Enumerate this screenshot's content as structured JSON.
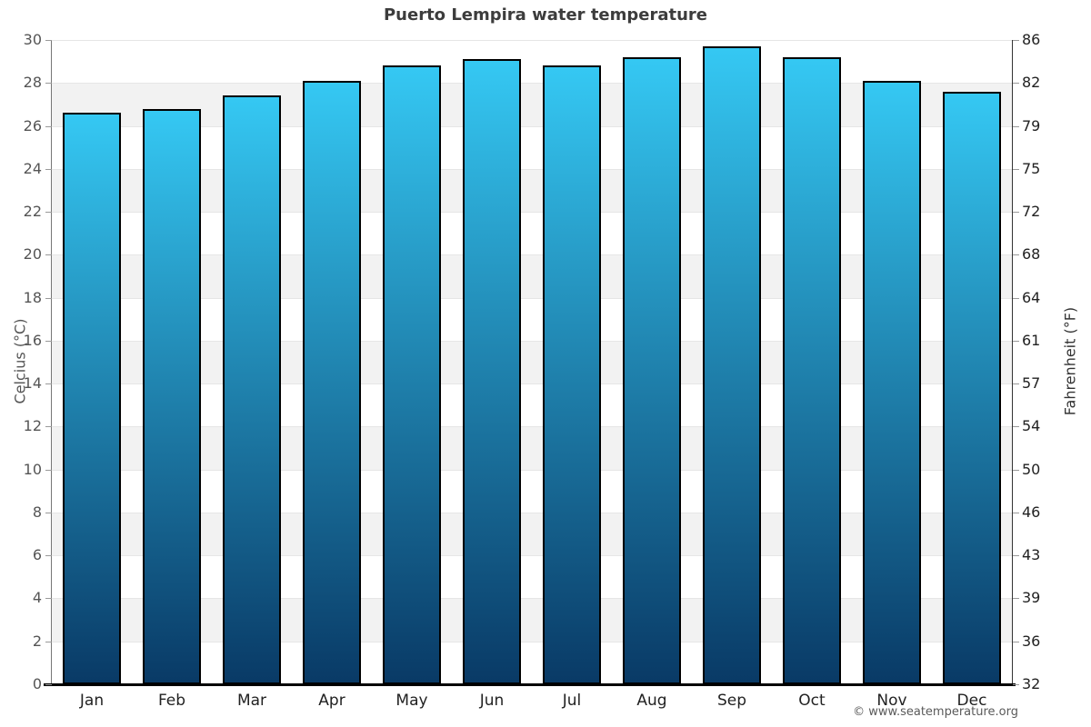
{
  "title": "Puerto Lempira water temperature",
  "copyright": "© www.seatemperature.org",
  "chart_data": {
    "type": "bar",
    "title": "Puerto Lempira water temperature",
    "categories": [
      "Jan",
      "Feb",
      "Mar",
      "Apr",
      "May",
      "Jun",
      "Jul",
      "Aug",
      "Sep",
      "Oct",
      "Nov",
      "Dec"
    ],
    "values": [
      26.6,
      26.8,
      27.4,
      28.1,
      28.8,
      29.1,
      28.8,
      29.2,
      29.7,
      29.2,
      28.1,
      27.6
    ],
    "units": "°C",
    "ylabel_left": "Celcius (°C)",
    "ylabel_right": "Fahrenheit (°F)",
    "xlabel": "",
    "ylim": [
      0,
      30
    ],
    "ytick_step": 2,
    "yticks_celsius": [
      0,
      2,
      4,
      6,
      8,
      10,
      12,
      14,
      16,
      18,
      20,
      22,
      24,
      26,
      28,
      30
    ],
    "yticks_fahrenheit_labels": [
      "32",
      "36",
      "39",
      "43",
      "46",
      "50",
      "54",
      "57",
      "61",
      "64",
      "68",
      "72",
      "75",
      "79",
      "82",
      "86"
    ],
    "grid": "alternating-horizontal-bands",
    "legend": "none",
    "colors": {
      "bar_gradient_top": "#35c8f3",
      "bar_gradient_bottom": "#093a66",
      "bar_border": "#000000",
      "band_gray": "#f2f2f2",
      "band_white": "#ffffff",
      "gridline": "#e6e6e6",
      "title": "#3c3c3c",
      "tick_left": "#555555",
      "tick_right": "#222222"
    }
  }
}
